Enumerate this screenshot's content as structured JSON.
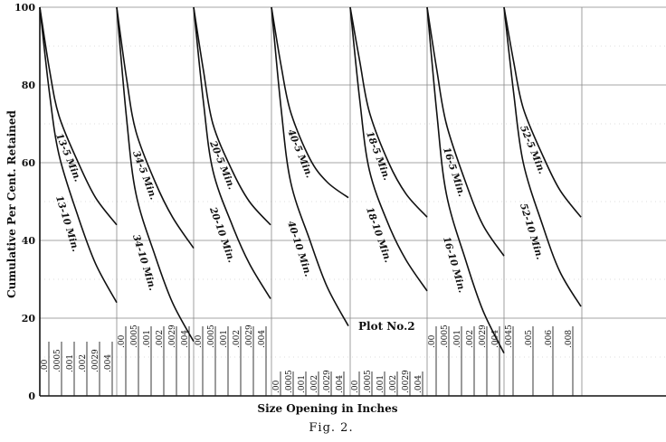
{
  "chart_data": {
    "type": "line",
    "ylabel": "Cumulative Per Cent. Retained",
    "xlabel": "Size Opening in Inches",
    "figure_label": "Fig. 2.",
    "plot_label": "Plot No.2",
    "ylim": [
      0,
      100
    ],
    "y_ticks": [
      "0",
      "20",
      "40",
      "60",
      "80",
      "100"
    ],
    "x_size_labels": [
      [
        ".00",
        ".0005",
        ".001",
        ".002",
        ".0029",
        ".004"
      ],
      [
        ".00",
        ".0005",
        ".001",
        ".002",
        ".0029",
        ".004"
      ],
      [
        ".00",
        ".0005",
        ".001",
        ".002",
        ".0029",
        ".004"
      ],
      [
        ".00",
        ".0005",
        ".001",
        ".002",
        ".0029",
        ".004"
      ],
      [
        ".00",
        ".0005",
        ".001",
        ".002",
        ".0029",
        ".004"
      ],
      [
        ".00",
        ".0005",
        ".001",
        ".002",
        ".0029",
        ".004"
      ],
      [
        ".0045",
        ".005",
        ".006",
        ".008"
      ]
    ],
    "x": [
      0,
      0.0005,
      0.001,
      0.002,
      0.0029,
      0.004
    ],
    "series": [
      {
        "name": "13-5 Min.",
        "panel": 0,
        "values": [
          100,
          84,
          72,
          60,
          51,
          44
        ]
      },
      {
        "name": "13-10 Min.",
        "panel": 0,
        "values": [
          100,
          78,
          62,
          46,
          34,
          24
        ]
      },
      {
        "name": "34-5 Min.",
        "panel": 1,
        "values": [
          100,
          82,
          68,
          55,
          46,
          38
        ]
      },
      {
        "name": "34-10 Min.",
        "panel": 1,
        "values": [
          100,
          72,
          52,
          36,
          24,
          14
        ]
      },
      {
        "name": "20-5 Min.",
        "panel": 2,
        "values": [
          100,
          84,
          70,
          58,
          50,
          44
        ]
      },
      {
        "name": "20-10 Min.",
        "panel": 2,
        "values": [
          100,
          76,
          58,
          44,
          34,
          25
        ]
      },
      {
        "name": "40-5 Min.",
        "panel": 3,
        "values": [
          100,
          85,
          73,
          61,
          55,
          51
        ]
      },
      {
        "name": "40-10 Min.",
        "panel": 3,
        "values": [
          100,
          74,
          55,
          40,
          28,
          18
        ]
      },
      {
        "name": "18-5 Min.",
        "panel": 4,
        "values": [
          100,
          86,
          73,
          60,
          52,
          46
        ]
      },
      {
        "name": "18-10 Min.",
        "panel": 4,
        "values": [
          100,
          76,
          58,
          44,
          35,
          27
        ]
      },
      {
        "name": "16-5 Min.",
        "panel": 5,
        "values": [
          100,
          84,
          70,
          55,
          44,
          36
        ]
      },
      {
        "name": "16-10 Min.",
        "panel": 5,
        "values": [
          100,
          73,
          52,
          35,
          22,
          11
        ]
      },
      {
        "name": "52-5 Min.",
        "panel": 6,
        "values": [
          100,
          86,
          74,
          62,
          53,
          46
        ]
      },
      {
        "name": "52-10 Min.",
        "panel": 6,
        "values": [
          100,
          78,
          60,
          44,
          32,
          23
        ]
      }
    ],
    "grid": true
  }
}
